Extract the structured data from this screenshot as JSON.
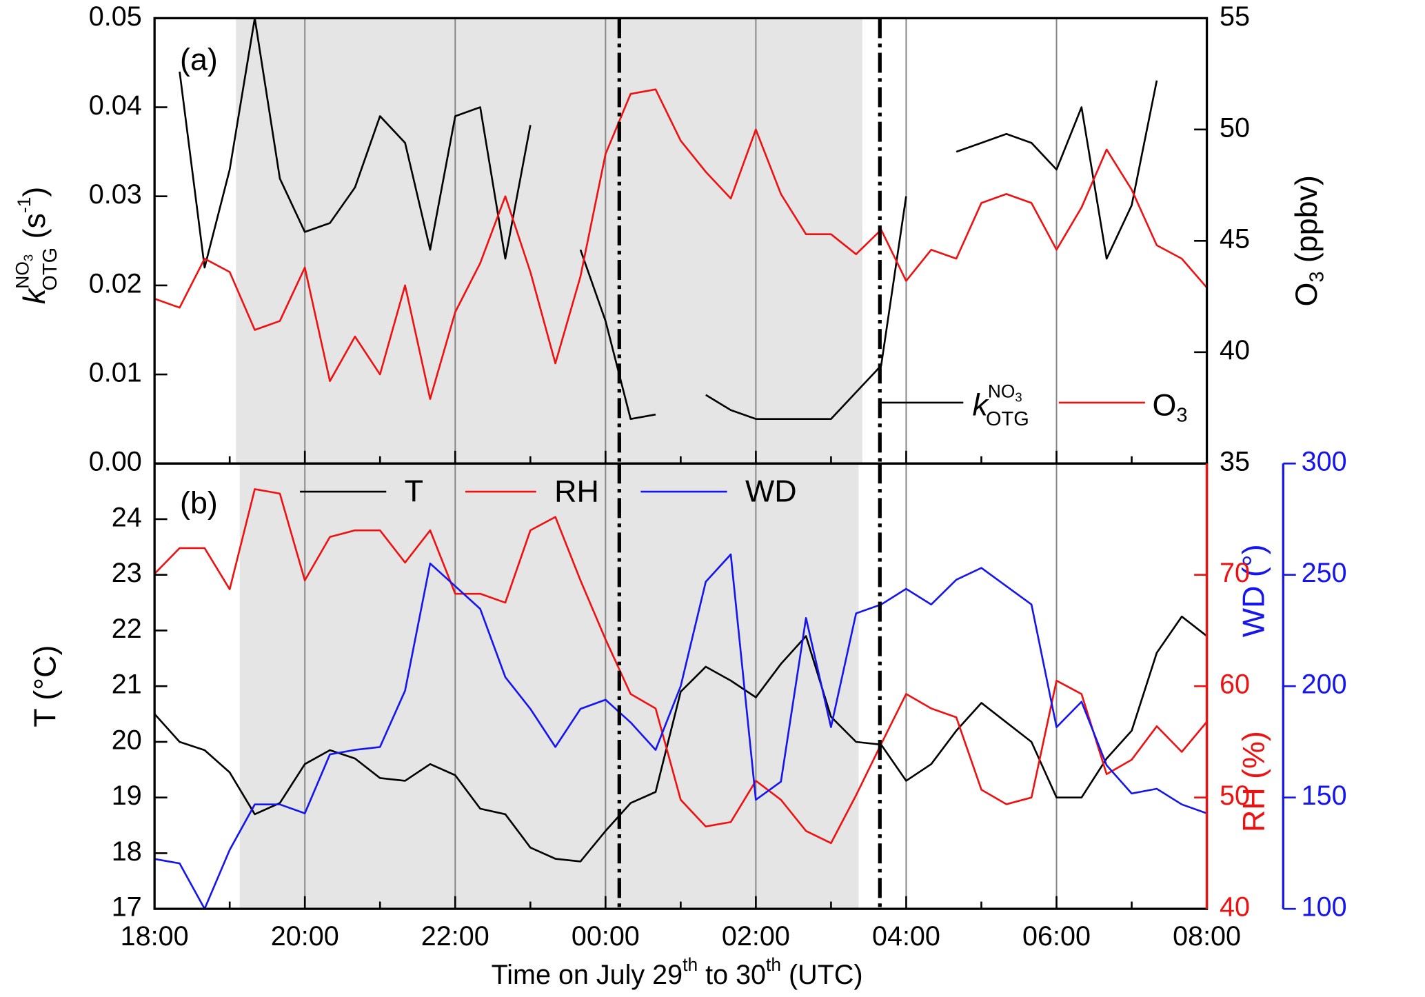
{
  "chart_data": {
    "type": "line",
    "x": [
      0,
      20,
      40,
      60,
      80,
      100,
      120,
      140,
      160,
      180,
      200,
      220,
      240,
      260,
      280,
      300,
      320,
      340,
      360,
      380,
      400,
      420,
      440,
      460,
      480,
      500,
      520,
      540,
      560,
      580,
      600,
      620,
      640,
      660,
      680,
      700,
      720,
      740,
      760,
      780,
      800,
      820,
      840
    ],
    "xlim": [
      0,
      840
    ],
    "xticks": [
      {
        "value": 0,
        "label": "18:00"
      },
      {
        "value": 120,
        "label": "20:00"
      },
      {
        "value": 240,
        "label": "22:00"
      },
      {
        "value": 360,
        "label": "00:00"
      },
      {
        "value": 480,
        "label": "02:00"
      },
      {
        "value": 600,
        "label": "04:00"
      },
      {
        "value": 720,
        "label": "06:00"
      },
      {
        "value": 840,
        "label": "08:00"
      }
    ],
    "xminorticks": [
      60,
      180,
      300,
      420,
      540,
      660,
      780
    ],
    "xlabel": [
      "Time on July 29",
      "th",
      " to 30",
      "th",
      " (UTC)"
    ],
    "grid": true,
    "markers": [
      371,
      579
    ],
    "panels": [
      {
        "label": "(a)",
        "shaded": [
          65,
          565
        ],
        "ylabel": [
          "k",
          "NO",
          "3",
          "OTG",
          " (s",
          "-1",
          ")"
        ],
        "y2label": [
          "O",
          "3",
          " (ppbv)"
        ],
        "ylim": [
          0,
          0.05
        ],
        "yticks": [
          {
            "value": 0,
            "label": "0.00"
          },
          {
            "value": 0.01,
            "label": "0.01"
          },
          {
            "value": 0.02,
            "label": "0.02"
          },
          {
            "value": 0.03,
            "label": "0.03"
          },
          {
            "value": 0.04,
            "label": "0.04"
          },
          {
            "value": 0.05,
            "label": "0.05"
          }
        ],
        "y2lim": [
          35,
          55
        ],
        "y2ticks": [
          35,
          40,
          45,
          50,
          55
        ],
        "series": [
          {
            "name": [
              "k",
              "NO",
              "3",
              "OTG"
            ],
            "color": "#000000",
            "values": [
              null,
              0.044,
              0.022,
              0.033,
              0.05,
              0.032,
              0.026,
              0.027,
              0.031,
              0.039,
              0.036,
              0.024,
              0.039,
              0.04,
              0.023,
              0.038,
              null,
              0.024,
              0.016,
              0.005,
              0.0055,
              null,
              0.0077,
              0.006,
              0.005,
              0.005,
              0.005,
              0.005,
              0.008,
              0.011,
              0.03,
              null,
              0.035,
              0.036,
              0.037,
              0.036,
              0.033,
              0.04,
              0.023,
              0.029,
              0.043,
              null,
              null
            ]
          },
          {
            "name": [
              "O",
              "3"
            ],
            "color": "#ee1111",
            "axis": "y2",
            "values": [
              42.4,
              42.0,
              44.2,
              43.6,
              41.0,
              41.4,
              43.8,
              38.7,
              40.7,
              39.0,
              43.0,
              37.9,
              41.8,
              44.0,
              47.0,
              43.6,
              39.5,
              43.4,
              48.9,
              51.6,
              51.8,
              49.5,
              48.1,
              46.9,
              50.0,
              47.1,
              45.3,
              45.3,
              44.4,
              45.5,
              43.2,
              44.6,
              44.2,
              46.7,
              47.1,
              46.7,
              44.6,
              46.5,
              49.1,
              47.3,
              44.8,
              44.2,
              42.9
            ]
          }
        ]
      },
      {
        "label": "(b)",
        "shaded": [
          68,
          562
        ],
        "ylabel": "T (°C)",
        "y2label": "RH (%)",
        "y3label": "WD (°)",
        "ylim": [
          17,
          25
        ],
        "yticks": [
          17,
          18,
          19,
          20,
          21,
          22,
          23,
          24
        ],
        "y2lim": [
          40,
          80
        ],
        "y2ticks": [
          40,
          50,
          60,
          70
        ],
        "y2color": "#ee1111",
        "y3lim": [
          100,
          300
        ],
        "y3ticks": [
          100,
          150,
          200,
          250,
          300
        ],
        "y3color": "#1515ee",
        "series": [
          {
            "name": "T",
            "color": "#000000",
            "values": [
              20.5,
              20.0,
              19.85,
              19.45,
              18.7,
              18.9,
              19.6,
              19.85,
              19.7,
              19.35,
              19.3,
              19.6,
              19.4,
              18.8,
              18.7,
              18.1,
              17.9,
              17.85,
              18.4,
              18.9,
              19.1,
              20.9,
              21.35,
              21.1,
              20.8,
              21.4,
              21.9,
              20.45,
              20.0,
              19.95,
              19.3,
              19.6,
              20.2,
              20.7,
              20.35,
              20.0,
              19.0,
              19.0,
              19.7,
              20.2,
              21.6,
              22.25,
              21.9
            ]
          },
          {
            "name": "RH",
            "color": "#ee1111",
            "axis": "y2",
            "values": [
              70.1,
              72.4,
              72.4,
              68.7,
              77.7,
              77.3,
              69.5,
              73.4,
              74.0,
              74.0,
              71.1,
              74.0,
              68.3,
              68.3,
              67.5,
              74.0,
              75.2,
              69.5,
              64.2,
              59.3,
              58.0,
              49.8,
              47.4,
              47.8,
              51.5,
              49.8,
              47.0,
              45.9,
              50.2,
              54.8,
              59.3,
              58.0,
              57.2,
              50.7,
              49.4,
              50.0,
              60.5,
              59.3,
              52.1,
              53.4,
              56.4,
              54.1,
              56.8
            ]
          },
          {
            "name": "WD",
            "color": "#1515ee",
            "axis": "y3",
            "values": [
              122.4,
              120.4,
              100,
              126.5,
              146.9,
              146.9,
              142.9,
              169.4,
              171.4,
              172.7,
              198,
              255.1,
              244.9,
              234.7,
              204.1,
              189.8,
              172.7,
              189.8,
              193.9,
              183.7,
              171.4,
              200,
              246.9,
              259.2,
              149,
              157.1,
              230.6,
              181.6,
              232.7,
              236.7,
              243.7,
              236.7,
              247.8,
              253.1,
              244.9,
              236.7,
              181.6,
              193,
              164.5,
              151.8,
              153.9,
              146.9,
              142.9
            ]
          }
        ]
      }
    ]
  }
}
